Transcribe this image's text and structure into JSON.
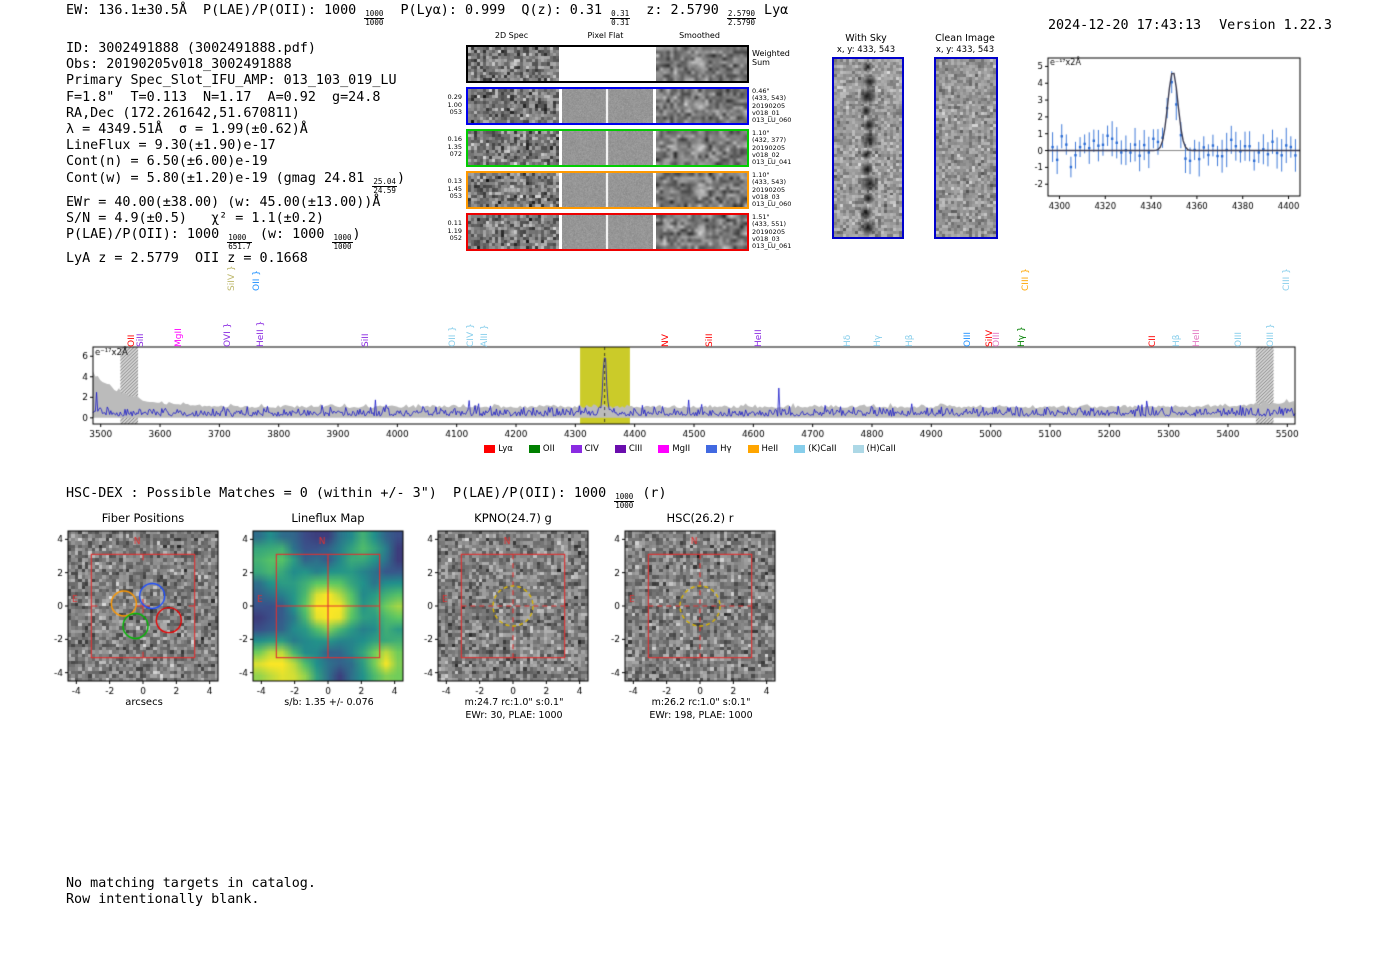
{
  "header": {
    "left_segments": [
      {
        "t": "EW: 136.1±30.5Å  P(LAE)/P(OII): 1000 "
      },
      {
        "f": [
          "1000",
          "1000"
        ]
      },
      {
        "t": "  P(Lyα): 0.999  Q(z): 0.31 "
      },
      {
        "f": [
          "0.31",
          "0.31"
        ]
      },
      {
        "t": "  z: 2.5790 "
      },
      {
        "f": [
          "2.5790",
          "2.5790"
        ]
      },
      {
        "t": " Lyα"
      }
    ],
    "timestamp": "2024-12-20 17:43:13",
    "version": "Version 1.22.3"
  },
  "info_block": {
    "lines": [
      [
        {
          "t": "ID: 3002491888 (3002491888.pdf)"
        }
      ],
      [
        {
          "t": "Obs: 20190205v018_3002491888"
        }
      ],
      [
        {
          "t": "Primary Spec_Slot_IFU_AMP: 013_103_019_LU"
        }
      ],
      [
        {
          "t": "F=1.8\"  T=0.113  N=1.17  A=0.92  g=24.8"
        }
      ],
      [
        {
          "t": "RA,Dec (172.261642,51.670811)"
        }
      ],
      [
        {
          "t": "λ = 4349.51Å  σ = 1.99(±0.62)Å"
        }
      ],
      [
        {
          "t": "LineFlux = 9.30(±1.90)e-17"
        }
      ],
      [
        {
          "t": "Cont(n) = 6.50(±6.00)e-19"
        }
      ],
      [
        {
          "t": "Cont(w) = 5.80(±1.20)e-19 (gmag 24.81 "
        },
        {
          "f": [
            "25.04",
            "24.59"
          ]
        },
        {
          "t": ")"
        }
      ],
      [
        {
          "t": "EWr = 40.00(±38.00) (w: 45.00(±13.00))Å"
        }
      ],
      [
        {
          "t": "S/N = 4.9(±0.5)   χ² = 1.1(±0.2)"
        }
      ],
      [
        {
          "t": "P(LAE)/P(OII): 1000 "
        },
        {
          "f": [
            "1000",
            "651.7"
          ]
        },
        {
          "t": " (w: 1000 "
        },
        {
          "f": [
            "1000",
            "1000"
          ]
        },
        {
          "t": ")"
        }
      ],
      [
        {
          "t": "LyA z = 2.5779  OII z = 0.1668"
        }
      ]
    ]
  },
  "spec2d": {
    "col_headers": [
      "2D Spec",
      "Pixel Flat",
      "Smoothed"
    ],
    "rows": [
      {
        "border": "#000000",
        "left": [],
        "right": [
          "Weighted",
          "Sum"
        ],
        "type": "sum"
      },
      {
        "border": "#0000ee",
        "left": [
          "0.29",
          "1.00",
          "053"
        ],
        "right": [
          "0.46\"",
          "(433, 543)",
          "20190205",
          "v018_01",
          "013_LU_060"
        ],
        "type": "fiber"
      },
      {
        "border": "#00cc00",
        "left": [
          "0.16",
          "1.35",
          "072"
        ],
        "right": [
          "1.10\"",
          "(432, 377)",
          "20190205",
          "v018_02",
          "013_LU_041"
        ],
        "type": "fiber"
      },
      {
        "border": "#ff9900",
        "left": [
          "0.13",
          "1.45",
          "053"
        ],
        "right": [
          "1.10\"",
          "(433, 543)",
          "20190205",
          "v018_03",
          "013_LU_060"
        ],
        "type": "fiber"
      },
      {
        "border": "#ee0000",
        "left": [
          "0.11",
          "1.19",
          "052"
        ],
        "right": [
          "1.51\"",
          "(433, 551)",
          "20190205",
          "v018_03",
          "013_LU_061"
        ],
        "type": "fiber"
      }
    ]
  },
  "sky_panels": {
    "with_sky": {
      "title": "With Sky",
      "coords": "x, y: 433, 543"
    },
    "clean": {
      "title": "Clean Image",
      "coords": "x, y: 433, 543"
    }
  },
  "hsc_dex_segments": [
    {
      "t": "HSC-DEX : Possible Matches = 0 (within +/- 3\")  P(LAE)/P(OII): 1000 "
    },
    {
      "f": [
        "1000",
        "1000"
      ]
    },
    {
      "t": " (r)"
    }
  ],
  "footer": {
    "line1": "No matching targets in catalog.",
    "line2": "Row intentionally blank."
  },
  "chart_data": {
    "spectrum": {
      "type": "line",
      "unit_label": "e⁻¹⁷x2Å",
      "xlim": [
        3487,
        5513
      ],
      "xticks": [
        3500,
        3600,
        3700,
        3800,
        3900,
        4000,
        4100,
        4200,
        4300,
        4400,
        4500,
        4600,
        4700,
        4800,
        4900,
        5000,
        5100,
        5200,
        5300,
        5400,
        5500
      ],
      "yticks": [
        0,
        2,
        4,
        6
      ],
      "ylim": [
        -0.6,
        6.9
      ],
      "line_color": "#1515c8",
      "noise_envelope_color": "#bbbbbb",
      "peak": {
        "wavelength": 4349.51,
        "height": 6.0,
        "sigma": 3
      },
      "highlight_band": {
        "range": [
          4308,
          4392
        ],
        "color": "#c8c81e"
      },
      "hatched_bands": [
        [
          3533,
          3563
        ],
        [
          5447,
          5477
        ]
      ],
      "dashed_line_x": 4349.51,
      "line_labels": [
        {
          "wl": 3549,
          "t": "OII",
          "c": "#ff0000"
        },
        {
          "wl": 3565,
          "t": "SiII",
          "c": "#8a2be2"
        },
        {
          "wl": 3629,
          "t": "MgII",
          "c": "#ff00ff"
        },
        {
          "wl": 3712,
          "t": "OVI }",
          "c": "#8a2be2"
        },
        {
          "wl": 3718,
          "t": "SiIV }",
          "c": "#bdb76b",
          "raised": true
        },
        {
          "wl": 3760,
          "t": "OII }",
          "c": "#1e90ff",
          "raised": true
        },
        {
          "wl": 3766,
          "t": "HeII }",
          "c": "#8a2be2"
        },
        {
          "wl": 3944,
          "t": "SiII",
          "c": "#8a2be2"
        },
        {
          "wl": 4090,
          "t": "OII }",
          "c": "#87ceeb"
        },
        {
          "wl": 4120,
          "t": "CIV }",
          "c": "#87ceeb"
        },
        {
          "wl": 4145,
          "t": "AlII }",
          "c": "#87ceeb"
        },
        {
          "wl": 4449,
          "t": "NV",
          "c": "#ff0000"
        },
        {
          "wl": 4523,
          "t": "SiII",
          "c": "#ff0000"
        },
        {
          "wl": 4606,
          "t": "HeII",
          "c": "#8a2be2"
        },
        {
          "wl": 4757,
          "t": "Hδ",
          "c": "#87ceeb"
        },
        {
          "wl": 4806,
          "t": "Hγ",
          "c": "#87ceeb"
        },
        {
          "wl": 4860,
          "t": "Hβ",
          "c": "#87ceeb"
        },
        {
          "wl": 4958,
          "t": "OIII",
          "c": "#1e90ff"
        },
        {
          "wl": 4996,
          "t": "SiIV",
          "c": "#ff0000"
        },
        {
          "wl": 5007,
          "t": "OIII",
          "c": "#e377c2"
        },
        {
          "wl": 5050,
          "t": "Hγ }",
          "c": "#008000"
        },
        {
          "wl": 5056,
          "t": "CIII }",
          "c": "#ffa500",
          "raised": true
        },
        {
          "wl": 5270,
          "t": "CII",
          "c": "#ff0000"
        },
        {
          "wl": 5310,
          "t": "Hβ",
          "c": "#87ceeb"
        },
        {
          "wl": 5345,
          "t": "HeII",
          "c": "#e377c2"
        },
        {
          "wl": 5415,
          "t": "OIII",
          "c": "#87ceeb"
        },
        {
          "wl": 5470,
          "t": "OIII }",
          "c": "#87ceeb"
        },
        {
          "wl": 5496,
          "t": "CIII }",
          "c": "#87ceeb",
          "raised": true
        }
      ],
      "legend": [
        {
          "label": "Lyα",
          "color": "#ff0000"
        },
        {
          "label": "OII",
          "color": "#008000"
        },
        {
          "label": "CIV",
          "color": "#8a2be2"
        },
        {
          "label": "CIII",
          "color": "#6a0dad"
        },
        {
          "label": "MgII",
          "color": "#ff00ff"
        },
        {
          "label": "Hγ",
          "color": "#4169e1"
        },
        {
          "label": "HeII",
          "color": "#ffa500"
        },
        {
          "label": "(K)CaII",
          "color": "#87ceeb"
        },
        {
          "label": "(H)CaII",
          "color": "#add8e6"
        }
      ]
    },
    "zoom": {
      "type": "scatter+fit",
      "unit_label": "e⁻¹⁷x2Å",
      "xlim": [
        4295,
        4405
      ],
      "ylim": [
        -2.7,
        5.5
      ],
      "xticks": [
        4300,
        4320,
        4340,
        4360,
        4380,
        4400
      ],
      "yticks": [
        -2,
        -1,
        0,
        1,
        2,
        3,
        4,
        5
      ],
      "point_color": "#2b6cd4",
      "fit_color": "#3d3d52",
      "gaussian": {
        "center": 4349.51,
        "sigma": 2.2,
        "amplitude": 4.7
      }
    },
    "cutouts": [
      {
        "title": "Fiber Positions",
        "xlabel": "arcsecs",
        "type": "fibers",
        "ticks": [
          -4,
          -2,
          0,
          2,
          4
        ],
        "compass": {
          "n": "N",
          "e": "E"
        },
        "fiber_radius": 0.75,
        "fibers": [
          {
            "x": 0.55,
            "y": 0.6,
            "color": "#1f4fff"
          },
          {
            "x": -1.15,
            "y": 0.15,
            "color": "#ff9900"
          },
          {
            "x": -0.45,
            "y": -1.2,
            "color": "#00bb00"
          },
          {
            "x": 1.55,
            "y": -0.85,
            "color": "#ee0000"
          }
        ]
      },
      {
        "title": "Lineflux Map",
        "caption": "s/b: 1.35 +/- 0.076",
        "type": "heatmap",
        "ticks": [
          -4,
          -2,
          0,
          2,
          4
        ],
        "compass": {
          "n": "N",
          "e": "E"
        }
      },
      {
        "title": "KPNO(24.7) g",
        "caption": "m:24.7 rc:1.0\"  s:0.1\"",
        "caption2": "EWr: 30, PLAE: 1000",
        "type": "image",
        "ticks": [
          -4,
          -2,
          0,
          2,
          4
        ],
        "aperture_radius": 1.2,
        "compass": {
          "n": "N",
          "e": "E"
        }
      },
      {
        "title": "HSC(26.2) r",
        "caption": "m:26.2 rc:1.0\"  s:0.1\"",
        "caption2": "EWr: 198, PLAE: 1000",
        "type": "image",
        "ticks": [
          -4,
          -2,
          0,
          2,
          4
        ],
        "aperture_radius": 1.2,
        "compass": {
          "n": "N",
          "e": "E"
        }
      }
    ]
  }
}
